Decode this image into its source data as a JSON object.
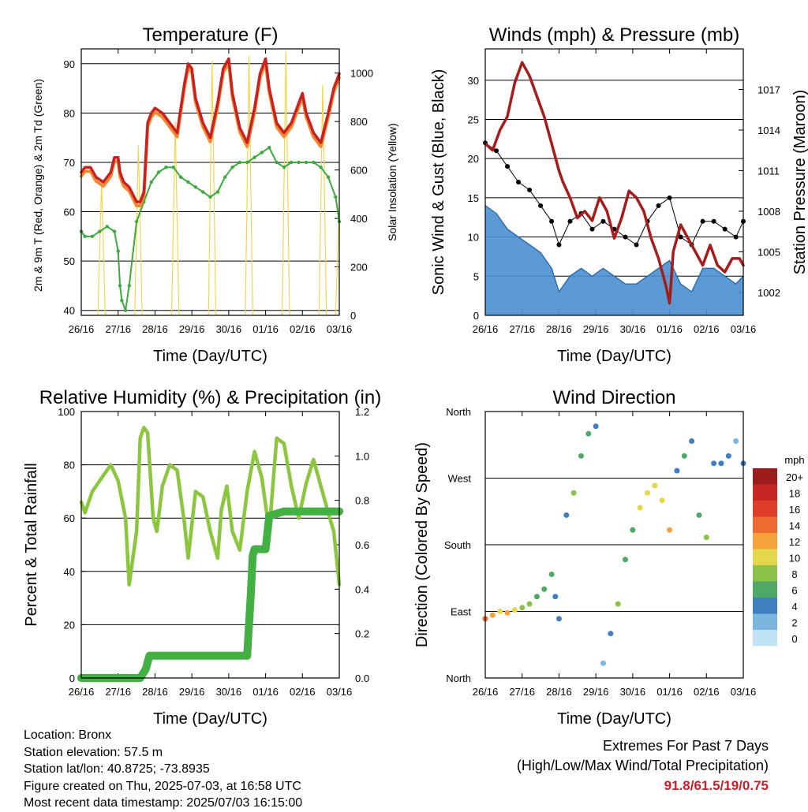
{
  "chart_data": [
    {
      "type": "line",
      "title": "Temperature (F)",
      "xlabel": "Time (Day/UTC)",
      "ylabel": "2m & 9m T (Red, Orange) & 2m Td (Green)",
      "ylabel_right": "Solar Insolation (Yellow)",
      "x_ticks": [
        "26/16",
        "27/16",
        "28/16",
        "29/16",
        "30/16",
        "01/16",
        "02/16",
        "03/16"
      ],
      "ylim": [
        39,
        93
      ],
      "y_ticks": [
        40,
        50,
        60,
        70,
        80,
        90
      ],
      "ylim_right": [
        0,
        1100
      ],
      "y_ticks_right": [
        0,
        200,
        400,
        600,
        800,
        1000
      ],
      "colors": {
        "t2m": "#cc1f1f",
        "t9m": "#f08a30",
        "td": "#3fa83f",
        "solar": "#f2d64f"
      },
      "series": [
        {
          "name": "2m T",
          "x": [
            0,
            0.1,
            0.25,
            0.4,
            0.6,
            0.8,
            0.9,
            1.0,
            1.05,
            1.15,
            1.3,
            1.5,
            1.6,
            1.7,
            1.8,
            1.9,
            2.0,
            2.2,
            2.4,
            2.6,
            2.8,
            2.9,
            3.0,
            3.1,
            3.3,
            3.5,
            3.7,
            3.85,
            4.0,
            4.1,
            4.3,
            4.5,
            4.7,
            4.85,
            5.0,
            5.1,
            5.3,
            5.5,
            5.7,
            5.9,
            6.0,
            6.1,
            6.3,
            6.5,
            6.7,
            6.85,
            7.0
          ],
          "values": [
            68,
            69,
            69,
            67,
            66,
            68,
            71,
            71,
            68,
            66,
            65,
            62,
            62,
            64,
            78,
            80,
            81,
            80,
            78,
            76,
            86,
            90,
            89,
            83,
            78,
            75,
            82,
            89,
            91,
            84,
            77,
            74,
            81,
            88,
            91,
            85,
            78,
            76,
            78,
            82,
            84,
            80,
            76,
            74,
            80,
            85,
            88
          ]
        },
        {
          "name": "2m Td",
          "x": [
            0,
            0.1,
            0.3,
            0.5,
            0.7,
            0.9,
            1.0,
            1.05,
            1.1,
            1.2,
            1.3,
            1.5,
            1.7,
            1.9,
            2.1,
            2.3,
            2.5,
            2.7,
            2.9,
            3.1,
            3.3,
            3.5,
            3.7,
            3.9,
            4.1,
            4.3,
            4.5,
            4.7,
            4.9,
            5.1,
            5.3,
            5.5,
            5.7,
            5.9,
            6.1,
            6.3,
            6.5,
            6.7,
            6.9,
            7.0
          ],
          "values": [
            56,
            55,
            55,
            56,
            57,
            56,
            52,
            45,
            42,
            40,
            45,
            58,
            62,
            66,
            68,
            69,
            69,
            67,
            66,
            65,
            64,
            63,
            64,
            67,
            69,
            70,
            70,
            71,
            72,
            73,
            70,
            69,
            70,
            70,
            70,
            70,
            69,
            67,
            63,
            58
          ]
        },
        {
          "name": "Solar Insolation",
          "x": [
            0,
            0.2,
            0.45,
            0.55,
            0.65,
            0.9,
            1.45,
            1.55,
            1.65,
            1.9,
            2.45,
            2.55,
            2.65,
            2.9,
            3.45,
            3.55,
            3.65,
            3.9,
            4.45,
            4.55,
            4.65,
            4.9,
            5.45,
            5.55,
            5.65,
            5.9,
            6.45,
            6.55,
            6.65,
            6.9,
            7.0
          ],
          "values": [
            0,
            0,
            0,
            550,
            0,
            0,
            0,
            700,
            0,
            0,
            0,
            800,
            0,
            0,
            0,
            1050,
            0,
            0,
            0,
            1070,
            0,
            0,
            0,
            1090,
            0,
            0,
            0,
            950,
            0,
            0,
            450
          ]
        }
      ]
    },
    {
      "type": "line",
      "title": "Winds (mph) & Pressure (mb)",
      "xlabel": "Time (Day/UTC)",
      "ylabel": "Sonic Wind & Gust (Blue, Black)",
      "ylabel_right": "Station Pressure (Maroon)",
      "x_ticks": [
        "26/16",
        "27/16",
        "28/16",
        "29/16",
        "30/16",
        "01/16",
        "02/16",
        "03/16"
      ],
      "ylim": [
        0,
        34
      ],
      "y_ticks": [
        0,
        5,
        10,
        15,
        20,
        25,
        30
      ],
      "ylim_right": [
        1000.3,
        1020
      ],
      "y_ticks_right": [
        1002,
        1005,
        1008,
        1011,
        1014,
        1017
      ],
      "colors": {
        "wind": "#4a8fd0",
        "gust": "#000000",
        "pressure": "#a61b1b"
      },
      "series": [
        {
          "name": "Sonic Wind",
          "x": [
            0,
            0.3,
            0.6,
            0.9,
            1.2,
            1.5,
            1.8,
            2.0,
            2.3,
            2.6,
            2.9,
            3.2,
            3.5,
            3.8,
            4.1,
            4.4,
            4.7,
            5.0,
            5.3,
            5.6,
            5.9,
            6.2,
            6.5,
            6.8,
            7.0
          ],
          "values": [
            14,
            13,
            11,
            10,
            9,
            8,
            6,
            3,
            5,
            6,
            5,
            6,
            5,
            4,
            4,
            5,
            6,
            7,
            4,
            3,
            6,
            6,
            5,
            4,
            5
          ]
        },
        {
          "name": "Gust",
          "x": [
            0,
            0.3,
            0.6,
            0.9,
            1.2,
            1.5,
            1.8,
            2.0,
            2.3,
            2.6,
            2.9,
            3.2,
            3.5,
            3.8,
            4.1,
            4.4,
            4.7,
            5.0,
            5.3,
            5.6,
            5.9,
            6.2,
            6.5,
            6.8,
            7.0
          ],
          "values": [
            22,
            21,
            19,
            17,
            16,
            14,
            12,
            9,
            12,
            13,
            11,
            12,
            11,
            10,
            9,
            12,
            14,
            15,
            10,
            9,
            12,
            12,
            11,
            10,
            12
          ]
        },
        {
          "name": "Station Pressure",
          "x": [
            0,
            0.2,
            0.4,
            0.6,
            0.8,
            1.0,
            1.2,
            1.4,
            1.6,
            1.8,
            2.0,
            2.1,
            2.3,
            2.5,
            2.7,
            2.9,
            3.1,
            3.3,
            3.5,
            3.7,
            3.9,
            4.1,
            4.3,
            4.5,
            4.7,
            4.9,
            5.0,
            5.1,
            5.3,
            5.5,
            5.7,
            5.9,
            6.1,
            6.3,
            6.5,
            6.7,
            6.9,
            7.0
          ],
          "values": [
            1013,
            1012.5,
            1014,
            1015,
            1017.5,
            1019,
            1018,
            1016.5,
            1015,
            1013,
            1011,
            1010.2,
            1009,
            1007.5,
            1008,
            1007.3,
            1009,
            1008,
            1006,
            1007.5,
            1009.5,
            1009,
            1008,
            1006,
            1004.5,
            1002.5,
            1001.2,
            1005,
            1007,
            1006,
            1005,
            1004,
            1005.5,
            1004,
            1003.5,
            1004.5,
            1004.5,
            1004
          ]
        }
      ]
    },
    {
      "type": "line",
      "title": "Relative Humidity (%) & Precipitation (in)",
      "xlabel": "Time (Day/UTC)",
      "ylabel": "Percent & Total Rainfall",
      "x_ticks": [
        "26/16",
        "27/16",
        "28/16",
        "29/16",
        "30/16",
        "01/16",
        "02/16",
        "03/16"
      ],
      "ylim": [
        0,
        100
      ],
      "y_ticks": [
        0,
        20,
        40,
        60,
        80,
        100
      ],
      "ylim_right": [
        0,
        1.2
      ],
      "y_ticks_right": [
        "0.0",
        "0.2",
        "0.4",
        "0.6",
        "0.8",
        "1.0",
        "1.2"
      ],
      "colors": {
        "rh": "#8cc63e",
        "precip": "#43b043"
      },
      "series": [
        {
          "name": "Relative Humidity",
          "x": [
            0,
            0.1,
            0.3,
            0.6,
            0.8,
            1.0,
            1.2,
            1.3,
            1.5,
            1.6,
            1.7,
            1.8,
            1.95,
            2.05,
            2.2,
            2.4,
            2.6,
            2.8,
            2.9,
            3.1,
            3.3,
            3.5,
            3.7,
            3.8,
            3.95,
            4.1,
            4.3,
            4.5,
            4.7,
            4.9,
            5.1,
            5.3,
            5.5,
            5.7,
            5.9,
            6.1,
            6.3,
            6.5,
            6.7,
            6.85,
            7.0
          ],
          "values": [
            66,
            62,
            70,
            76,
            80,
            74,
            60,
            35,
            55,
            90,
            94,
            92,
            60,
            55,
            72,
            80,
            78,
            58,
            45,
            70,
            68,
            55,
            45,
            63,
            72,
            55,
            48,
            70,
            85,
            75,
            55,
            90,
            88,
            72,
            60,
            73,
            82,
            72,
            62,
            55,
            35
          ]
        },
        {
          "name": "Total Precipitation",
          "x": [
            0,
            1.6,
            1.75,
            1.85,
            4.5,
            4.55,
            4.6,
            4.65,
            4.7,
            5.0,
            5.1,
            5.3,
            5.5,
            7.0
          ],
          "values": [
            0,
            0,
            0.04,
            0.1,
            0.1,
            0.24,
            0.38,
            0.55,
            0.58,
            0.58,
            0.73,
            0.74,
            0.75,
            0.75
          ]
        }
      ]
    },
    {
      "type": "scatter",
      "title": "Wind Direction",
      "xlabel": "Time (Day/UTC)",
      "ylabel": "Direction (Colored By Speed)",
      "x_ticks": [
        "26/16",
        "27/16",
        "28/16",
        "29/16",
        "30/16",
        "01/16",
        "02/16",
        "03/16"
      ],
      "ylim": [
        0,
        360
      ],
      "y_ticks": [
        "North",
        "East",
        "South",
        "West",
        "North"
      ],
      "legend_title": "mph",
      "legend_labels": [
        "20+",
        "18",
        "16",
        "14",
        "12",
        "10",
        "8",
        "6",
        "4",
        "2",
        "0"
      ],
      "legend_colors": [
        "#9c1b1b",
        "#c82525",
        "#e03c2a",
        "#ef6a2e",
        "#f5a23b",
        "#e4d84a",
        "#8cc247",
        "#4fa866",
        "#3f7fbd",
        "#7ab6e0",
        "#bfe3f5"
      ],
      "series": [
        {
          "name": "direction",
          "x": [
            0,
            0.2,
            0.4,
            0.6,
            0.8,
            1.0,
            1.2,
            1.4,
            1.6,
            1.8,
            1.9,
            2.0,
            2.2,
            2.4,
            2.6,
            2.8,
            3.0,
            3.2,
            3.4,
            3.6,
            3.8,
            4.0,
            4.2,
            4.4,
            4.6,
            4.8,
            5.0,
            5.2,
            5.4,
            5.6,
            5.8,
            6.0,
            6.2,
            6.4,
            6.6,
            6.8,
            7.0
          ],
          "values": [
            80,
            85,
            90,
            88,
            92,
            95,
            100,
            110,
            120,
            140,
            110,
            80,
            220,
            250,
            300,
            330,
            340,
            20,
            60,
            100,
            160,
            200,
            230,
            250,
            260,
            240,
            200,
            280,
            300,
            320,
            220,
            190,
            290,
            290,
            300,
            320,
            290
          ],
          "speeds": [
            14,
            12,
            10,
            11,
            9,
            8,
            7,
            6,
            6,
            5,
            4,
            3,
            4,
            8,
            6,
            5,
            3,
            2,
            4,
            8,
            5,
            6,
            9,
            10,
            9,
            10,
            12,
            4,
            5,
            4,
            6,
            8,
            3,
            3,
            4,
            2,
            3
          ]
        }
      ]
    }
  ],
  "info": {
    "location": "Location: Bronx",
    "elevation": "Station elevation: 57.5 m",
    "latlon": "Station lat/lon: 40.8725; -73.8935",
    "created": "Figure created on Thu, 2025-07-03, at 16:58 UTC",
    "recent": "Most recent data timestamp: 2025/07/03 16:15:00"
  },
  "extremes": {
    "title": "Extremes For Past 7 Days",
    "subtitle": "(High/Low/Max Wind/Total Precipitation)",
    "values": "91.8/61.5/19/0.75"
  }
}
